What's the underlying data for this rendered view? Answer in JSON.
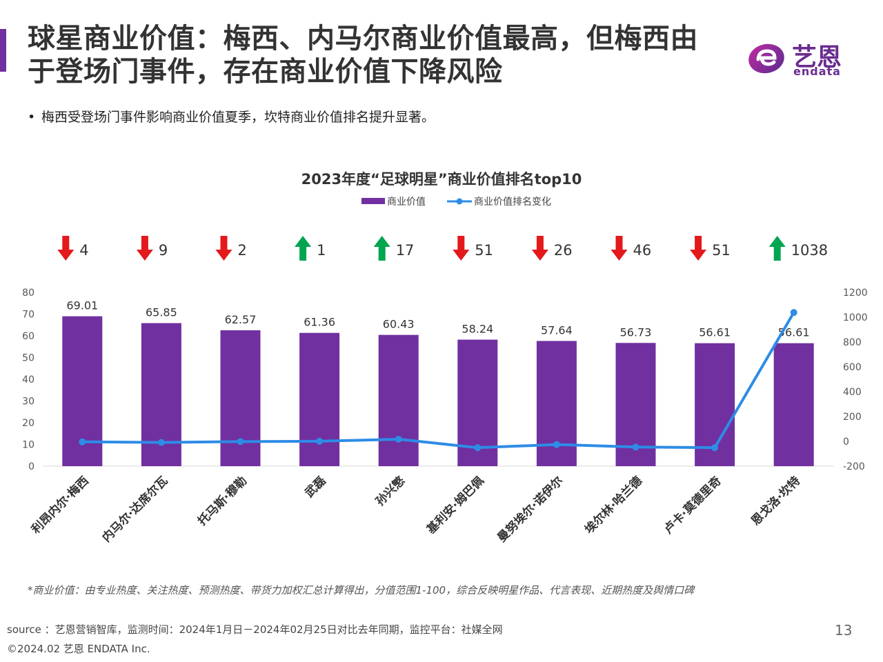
{
  "header": {
    "title": "球星商业价值：梅西、内马尔商业价值最高，但梅西由于登场门事件，存在商业价值下降风险",
    "logo_cn": "艺恩",
    "logo_en": "endata"
  },
  "bullet": "梅西受登场门事件影响商业价值夏季，坎特商业价值排名提升显著。",
  "chart_data": {
    "type": "bar",
    "title": "2023年度“足球明星”商业价值排名top10",
    "legend_position": "top",
    "categories": [
      "利昂内尔·梅西",
      "内马尔·达席尔瓦",
      "托马斯·穆勒",
      "武磊",
      "孙兴慜",
      "基利安·姆巴佩",
      "曼努埃尔·诺伊尔",
      "埃尔林·哈兰德",
      "卢卡·莫德里奇",
      "恩戈洛·坎特"
    ],
    "series": [
      {
        "name": "商业价值",
        "type": "bar",
        "axis": "left",
        "color": "#7030a0",
        "values": [
          69.01,
          65.85,
          62.57,
          61.36,
          60.43,
          58.24,
          57.64,
          56.73,
          56.61,
          56.61
        ]
      },
      {
        "name": "商业价值排名变化",
        "type": "line",
        "axis": "right",
        "color": "#2e8ce6",
        "values": [
          -4,
          -9,
          -2,
          1,
          17,
          -51,
          -26,
          -46,
          -51,
          1038
        ]
      }
    ],
    "rank_change": {
      "labels": [
        "4",
        "9",
        "2",
        "1",
        "17",
        "51",
        "26",
        "46",
        "51",
        "1038"
      ],
      "directions": [
        "down",
        "down",
        "down",
        "up",
        "up",
        "down",
        "down",
        "down",
        "down",
        "up"
      ],
      "up_color": "#00a550",
      "down_color": "#e3191c"
    },
    "y_left": {
      "min": 0,
      "max": 80,
      "step": 10,
      "ticks": [
        "0",
        "10",
        "20",
        "30",
        "40",
        "50",
        "60",
        "70",
        "80"
      ]
    },
    "y_right": {
      "min": -200,
      "max": 1200,
      "step": 200,
      "ticks": [
        "-200",
        "0",
        "200",
        "400",
        "600",
        "800",
        "1000",
        "1200"
      ]
    },
    "grid": false
  },
  "footnote": "*商业价值：由专业热度、关注热度、预测热度、带货力加权汇总计算得出，分值范围1-100，综合反映明星作品、代言表现、近期热度及舆情口碑",
  "footer": {
    "source": "source ：艺恩营销智库，监测时间：2024年1月日－2024年02月25日对比去年同期，监控平台：社媒全网",
    "copyright": "©2024.02  艺恩 ENDATA Inc.",
    "page": "13"
  }
}
